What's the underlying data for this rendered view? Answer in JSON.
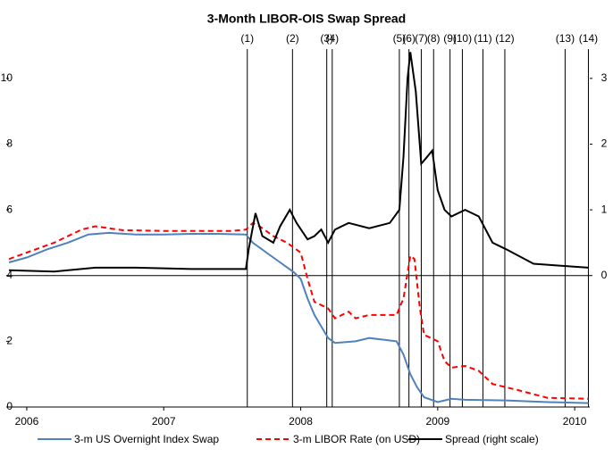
{
  "chart_data": {
    "type": "line",
    "title": "3-Month LIBOR-OIS Swap Spread",
    "xlim": [
      2005.87,
      2010.11
    ],
    "xticks": [
      2006,
      2007,
      2008,
      2009,
      2010
    ],
    "ylim": [
      0,
      11
    ],
    "yticks": [
      0,
      2,
      4,
      6,
      8,
      10
    ],
    "y2lim": [
      -2,
      3.5
    ],
    "y2ticks": [
      0,
      1,
      2,
      3
    ],
    "events": [
      {
        "x": 2007.61,
        "label": "(1)"
      },
      {
        "x": 2007.94,
        "label": "(2)"
      },
      {
        "x": 2008.19,
        "label": "(3)"
      },
      {
        "x": 2008.23,
        "label": "(4)"
      },
      {
        "x": 2008.72,
        "label": "(5)"
      },
      {
        "x": 2008.79,
        "label": "(6)"
      },
      {
        "x": 2008.88,
        "label": "(7)"
      },
      {
        "x": 2008.97,
        "label": "(8)"
      },
      {
        "x": 2009.09,
        "label": "(9)"
      },
      {
        "x": 2009.18,
        "label": "(10)"
      },
      {
        "x": 2009.33,
        "label": "(11)"
      },
      {
        "x": 2009.49,
        "label": "(12)"
      },
      {
        "x": 2009.93,
        "label": "(13)"
      },
      {
        "x": 2010.1,
        "label": "(14)"
      }
    ],
    "series": [
      {
        "name": "3-m US Overnight Index Swap",
        "color": "#4f81bd",
        "dash": "solid",
        "x": [
          2005.87,
          2006.0,
          2006.15,
          2006.3,
          2006.45,
          2006.6,
          2006.8,
          2007.0,
          2007.2,
          2007.4,
          2007.6,
          2007.65,
          2007.75,
          2007.85,
          2007.95,
          2008.0,
          2008.05,
          2008.1,
          2008.2,
          2008.25,
          2008.4,
          2008.5,
          2008.6,
          2008.7,
          2008.75,
          2008.8,
          2008.85,
          2008.9,
          2009.0,
          2009.1,
          2009.2,
          2009.5,
          2009.8,
          2010.1
        ],
        "values": [
          4.4,
          4.55,
          4.8,
          5.0,
          5.25,
          5.3,
          5.25,
          5.25,
          5.27,
          5.27,
          5.25,
          5.0,
          4.7,
          4.4,
          4.1,
          3.9,
          3.3,
          2.8,
          2.1,
          1.95,
          2.0,
          2.1,
          2.05,
          2.0,
          1.6,
          1.0,
          0.6,
          0.3,
          0.15,
          0.25,
          0.22,
          0.2,
          0.15,
          0.12
        ]
      },
      {
        "name": "3-m LIBOR Rate (on USD)",
        "color": "#ff0000",
        "dash": "dashed",
        "x": [
          2005.87,
          2006.0,
          2006.2,
          2006.4,
          2006.5,
          2006.7,
          2007.0,
          2007.5,
          2007.6,
          2007.65,
          2007.7,
          2007.8,
          2007.9,
          2008.0,
          2008.05,
          2008.1,
          2008.2,
          2008.25,
          2008.35,
          2008.4,
          2008.5,
          2008.7,
          2008.75,
          2008.8,
          2008.83,
          2008.87,
          2008.9,
          2009.0,
          2009.05,
          2009.1,
          2009.2,
          2009.3,
          2009.4,
          2009.6,
          2009.8,
          2010.1
        ],
        "values": [
          4.5,
          4.7,
          5.0,
          5.4,
          5.5,
          5.38,
          5.36,
          5.36,
          5.4,
          5.6,
          5.5,
          5.2,
          5.0,
          4.7,
          3.9,
          3.2,
          3.0,
          2.7,
          2.9,
          2.7,
          2.8,
          2.8,
          3.3,
          4.6,
          4.5,
          3.0,
          2.2,
          2.0,
          1.4,
          1.2,
          1.25,
          1.1,
          0.7,
          0.5,
          0.28,
          0.25
        ]
      },
      {
        "name": "Spread (right scale)",
        "color": "#000000",
        "dash": "solid",
        "axis": "y2",
        "x": [
          2005.87,
          2006.2,
          2006.5,
          2006.8,
          2007.2,
          2007.6,
          2007.62,
          2007.67,
          2007.72,
          2007.8,
          2007.85,
          2007.92,
          2007.97,
          2008.05,
          2008.1,
          2008.15,
          2008.2,
          2008.25,
          2008.3,
          2008.35,
          2008.5,
          2008.65,
          2008.72,
          2008.75,
          2008.78,
          2008.8,
          2008.84,
          2008.88,
          2008.92,
          2008.96,
          2009.0,
          2009.05,
          2009.1,
          2009.2,
          2009.3,
          2009.4,
          2009.5,
          2009.7,
          2009.9,
          2010.1
        ],
        "values": [
          0.08,
          0.06,
          0.12,
          0.12,
          0.1,
          0.1,
          0.4,
          0.95,
          0.6,
          0.5,
          0.75,
          1.0,
          0.8,
          0.55,
          0.6,
          0.7,
          0.5,
          0.7,
          0.75,
          0.8,
          0.72,
          0.8,
          1.0,
          1.8,
          3.0,
          3.4,
          2.8,
          1.7,
          1.8,
          1.9,
          1.3,
          1.0,
          0.9,
          1.0,
          0.9,
          0.5,
          0.4,
          0.18,
          0.15,
          0.12
        ]
      }
    ]
  }
}
